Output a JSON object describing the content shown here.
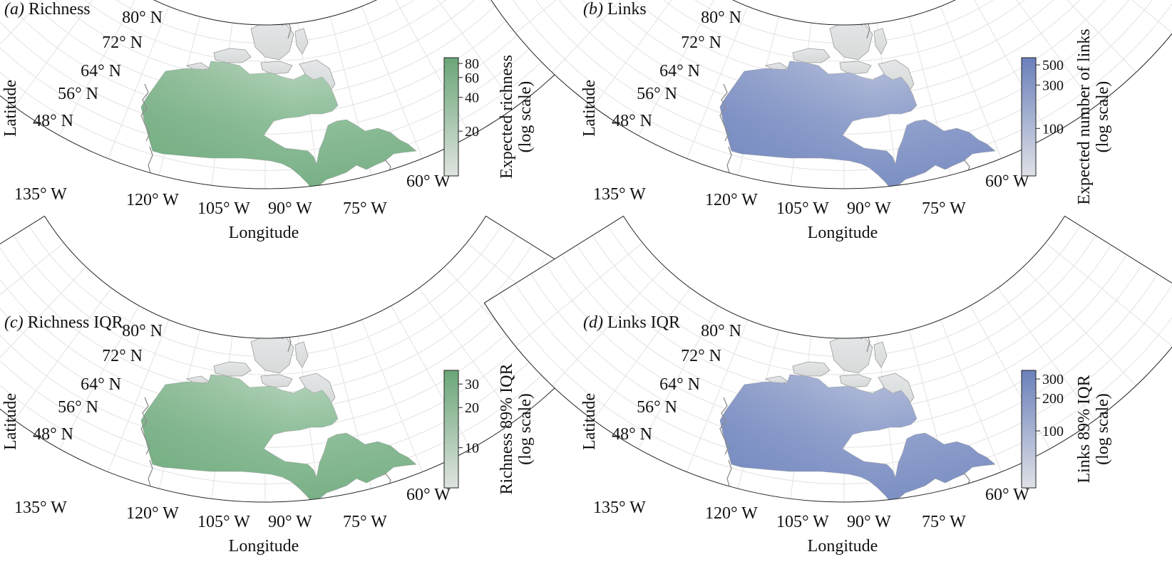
{
  "panels": [
    {
      "tag": "(a)",
      "title": "Richness",
      "xlabel": "Longitude",
      "ylabel": "Latitude",
      "lat_labels": [
        "80° N",
        "72° N",
        "64° N",
        "56° N",
        "48° N"
      ],
      "lon_labels": [
        "135° W",
        "120° W",
        "105° W",
        "90° W",
        "75° W",
        "60° W"
      ],
      "colorbar": {
        "label_line1": "Expected richness",
        "label_line2": "(log scale)",
        "scale": "log",
        "min": 8,
        "max": 90,
        "ticks": [
          {
            "label": "80",
            "value": 80
          },
          {
            "label": "60",
            "value": 60
          },
          {
            "label": "40",
            "value": 40
          },
          {
            "label": "20",
            "value": 20
          }
        ],
        "color_low": "#dfe3df",
        "color_high": "#6aa677"
      }
    },
    {
      "tag": "(b)",
      "title": "Links",
      "xlabel": "Longitude",
      "ylabel": "Latitude",
      "lat_labels": [
        "80° N",
        "72° N",
        "64° N",
        "56° N",
        "48° N"
      ],
      "lon_labels": [
        "135° W",
        "120° W",
        "105° W",
        "90° W",
        "75° W",
        "60° W"
      ],
      "colorbar": {
        "label_line1": "Expected number of links",
        "label_line2": "(log scale)",
        "scale": "log",
        "min": 30,
        "max": 600,
        "ticks": [
          {
            "label": "500",
            "value": 500
          },
          {
            "label": "300",
            "value": 300
          },
          {
            "label": "100",
            "value": 100
          }
        ],
        "color_low": "#dfe1e6",
        "color_high": "#6a80bb"
      }
    },
    {
      "tag": "(c)",
      "title": "Richness IQR",
      "xlabel": "Longitude",
      "ylabel": "Latitude",
      "lat_labels": [
        "80° N",
        "72° N",
        "64° N",
        "56° N",
        "48° N"
      ],
      "lon_labels": [
        "135° W",
        "120° W",
        "105° W",
        "90° W",
        "75° W",
        "60° W"
      ],
      "colorbar": {
        "label_line1": "Richness 89% IQR",
        "label_line2": "(log scale)",
        "scale": "log",
        "min": 5,
        "max": 38,
        "ticks": [
          {
            "label": "30",
            "value": 30
          },
          {
            "label": "20",
            "value": 20
          },
          {
            "label": "10",
            "value": 10
          }
        ],
        "color_low": "#dfe3df",
        "color_high": "#6aa677"
      }
    },
    {
      "tag": "(d)",
      "title": "Links IQR",
      "xlabel": "Longitude",
      "ylabel": "Latitude",
      "lat_labels": [
        "80° N",
        "72° N",
        "64° N",
        "56° N",
        "48° N"
      ],
      "lon_labels": [
        "135° W",
        "120° W",
        "105° W",
        "90° W",
        "75° W",
        "60° W"
      ],
      "colorbar": {
        "label_line1": "Links 89% IQR",
        "label_line2": "(log scale)",
        "scale": "log",
        "min": 30,
        "max": 360,
        "ticks": [
          {
            "label": "300",
            "value": 300
          },
          {
            "label": "200",
            "value": 200
          },
          {
            "label": "100",
            "value": 100
          }
        ],
        "color_low": "#dfe1e6",
        "color_high": "#6a80bb"
      }
    }
  ]
}
